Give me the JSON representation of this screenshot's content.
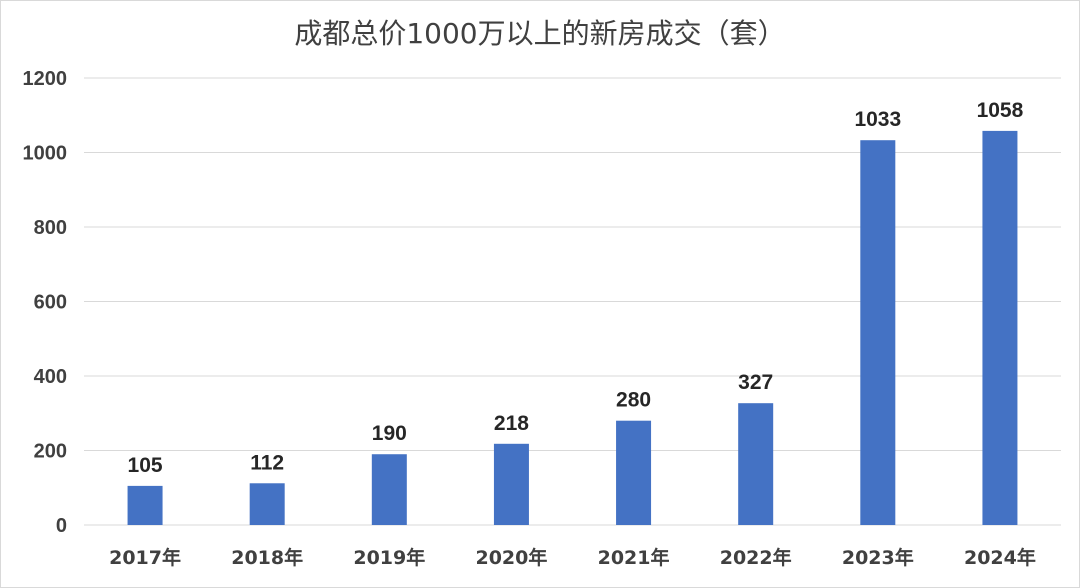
{
  "chart_data": {
    "type": "bar",
    "title": "成都总价1000万以上的新房成交（套）",
    "categories": [
      "2017年",
      "2018年",
      "2019年",
      "2020年",
      "2021年",
      "2022年",
      "2023年",
      "2024年"
    ],
    "values": [
      105,
      112,
      190,
      218,
      280,
      327,
      1033,
      1058
    ],
    "ylim": [
      0,
      1200
    ],
    "yticks": [
      0,
      200,
      400,
      600,
      800,
      1000,
      1200
    ],
    "xlabel": "",
    "ylabel": "",
    "grid": true,
    "legend": "none",
    "bar_color": "#4472c4"
  }
}
